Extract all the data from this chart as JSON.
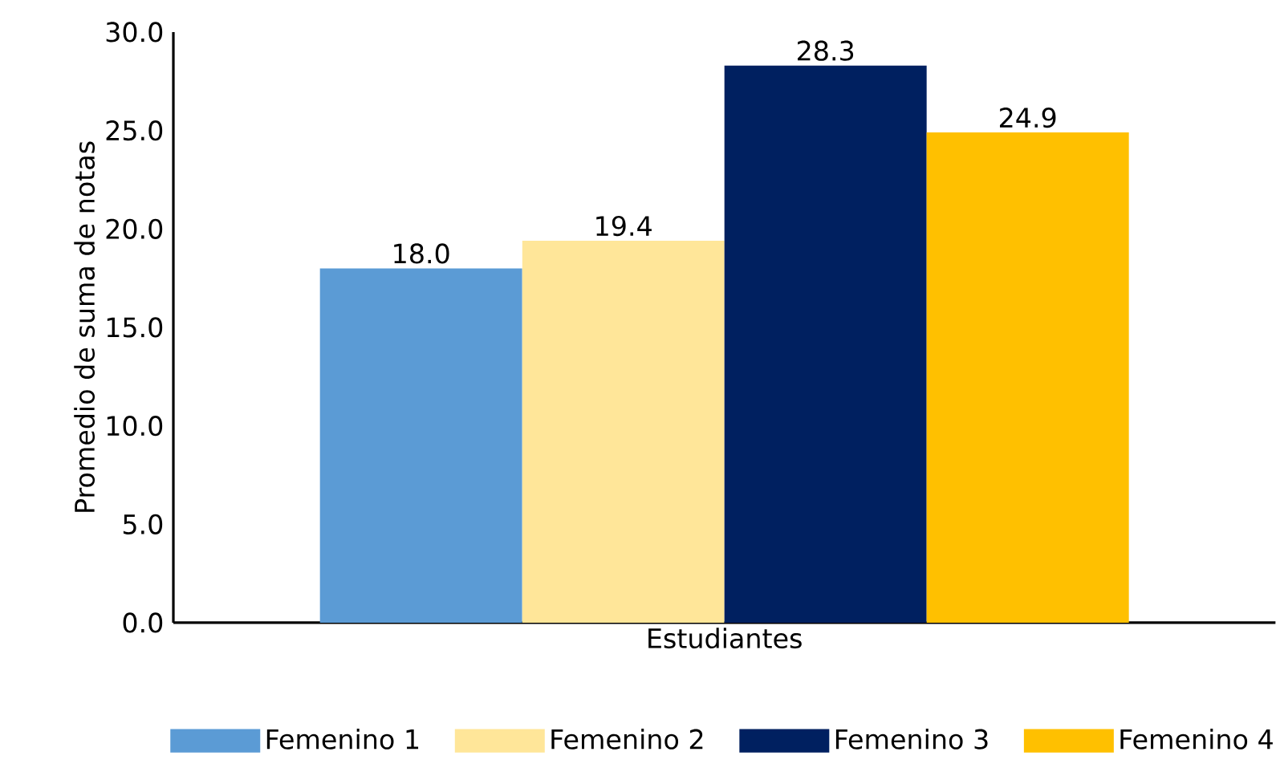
{
  "chart_data": {
    "type": "bar",
    "xlabel": "Estudiantes",
    "ylabel": "Promedio de suma de notas",
    "categories": [
      null
    ],
    "series": [
      {
        "name": "Femenino 1",
        "color": "#5b9bd5",
        "values": [
          18.0
        ],
        "value_labels": [
          "18.0"
        ]
      },
      {
        "name": "Femenino 2",
        "color": "#ffe699",
        "values": [
          19.4
        ],
        "value_labels": [
          "19.4"
        ]
      },
      {
        "name": "Femenino 3",
        "color": "#002060",
        "values": [
          28.3
        ],
        "value_labels": [
          "28.3"
        ]
      },
      {
        "name": "Femenino 4",
        "color": "#ffc000",
        "values": [
          24.9
        ],
        "value_labels": [
          "24.9"
        ]
      }
    ],
    "ylim": [
      0,
      30
    ],
    "yticks": [
      {
        "value": 0,
        "label": "0.0"
      },
      {
        "value": 5,
        "label": "5.0"
      },
      {
        "value": 10,
        "label": "10.0"
      },
      {
        "value": 15,
        "label": "15.0"
      },
      {
        "value": 20,
        "label": "20.0"
      },
      {
        "value": 25,
        "label": "25.0"
      },
      {
        "value": 30,
        "label": "30.0"
      }
    ],
    "legend": "bottom",
    "grid": false
  }
}
